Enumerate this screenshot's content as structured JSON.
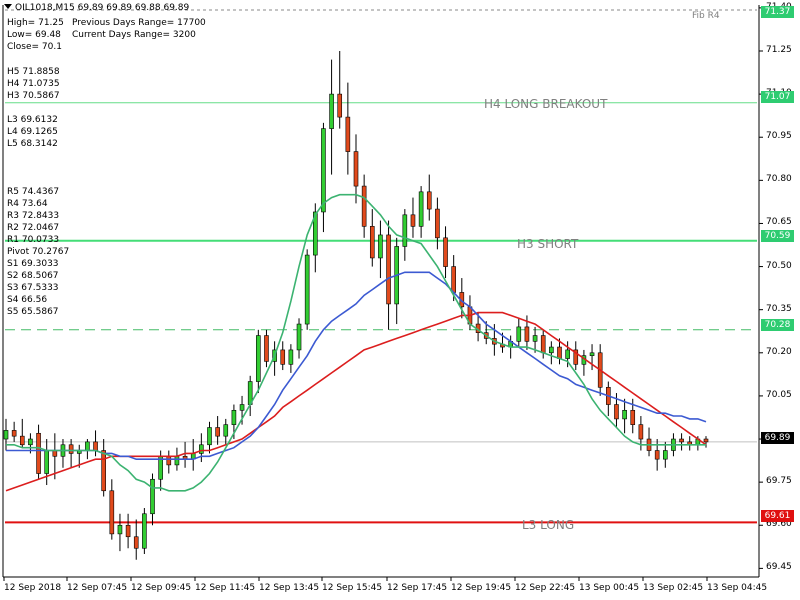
{
  "header": {
    "symbol_line": "OIL1018,M15  69.89 69.89 69.88 69.89",
    "high": "High= 71.25",
    "prev_range": "Previous Days Range= 17700",
    "low": "Low= 69.48",
    "curr_range": "Current Days Range= 3200",
    "close": "Close= 70.1"
  },
  "levels_upper": [
    "H5 71.8858",
    "H4 71.0735",
    "H3 70.5867"
  ],
  "levels_lower": [
    "L3 69.6132",
    "L4 69.1265",
    "L5 68.3142"
  ],
  "pivots": [
    "R5 74.4367",
    "R4 73.64",
    "R3 72.8433",
    "R2 72.0467",
    "R1 70.0733",
    "Pivot 70.2767",
    "S1 69.3033",
    "S2 68.5067",
    "S3 67.5333",
    "S4 66.56",
    "S5 65.5867"
  ],
  "fib_label": "Fib R4",
  "line_labels": {
    "h4": "H4 LONG BREAKOUT",
    "h3": "H3 SHORT",
    "l3": "L3 LONG"
  },
  "price_tags": {
    "top": "71.37",
    "h4": "71.07",
    "h3": "70.59",
    "pivot": "70.28",
    "last": "69.89",
    "l3": "69.61"
  },
  "colors": {
    "bull": "#32cd32",
    "bear": "#e14a1c",
    "ma_fast": "#3cb371",
    "ma_mid": "#3c5ad2",
    "ma_slow": "#dc1e1e",
    "hline": "#66dd88",
    "l3line": "#e01010",
    "price_tag_green": "#2ecc71",
    "price_tag_red": "#e01010",
    "last_tag": "#000000"
  },
  "chart_data": {
    "type": "candlestick",
    "y_ticks": [
      "71.40",
      "71.25",
      "71.10",
      "70.95",
      "70.80",
      "70.65",
      "70.50",
      "70.35",
      "70.20",
      "70.05",
      "69.90",
      "69.75",
      "69.60",
      "69.45"
    ],
    "x_ticks": [
      "12 Sep 2018",
      "12 Sep 07:45",
      "12 Sep 09:45",
      "12 Sep 11:45",
      "12 Sep 13:45",
      "12 Sep 15:45",
      "12 Sep 17:45",
      "12 Sep 19:45",
      "12 Sep 22:45",
      "13 Sep 00:45",
      "13 Sep 02:45",
      "13 Sep 04:45"
    ],
    "ylim": [
      69.42,
      71.41
    ],
    "hlines": {
      "h4": 71.07,
      "h3": 70.59,
      "pivot": 70.28,
      "current": 69.89,
      "l3": 69.61
    },
    "candles": [
      {
        "o": 69.9,
        "h": 69.97,
        "l": 69.86,
        "c": 69.93
      },
      {
        "o": 69.93,
        "h": 69.96,
        "l": 69.89,
        "c": 69.91
      },
      {
        "o": 69.91,
        "h": 69.97,
        "l": 69.87,
        "c": 69.88
      },
      {
        "o": 69.88,
        "h": 69.92,
        "l": 69.85,
        "c": 69.9
      },
      {
        "o": 69.92,
        "h": 69.95,
        "l": 69.76,
        "c": 69.78
      },
      {
        "o": 69.78,
        "h": 69.9,
        "l": 69.74,
        "c": 69.86
      },
      {
        "o": 69.86,
        "h": 69.92,
        "l": 69.76,
        "c": 69.84
      },
      {
        "o": 69.84,
        "h": 69.9,
        "l": 69.8,
        "c": 69.88
      },
      {
        "o": 69.88,
        "h": 69.9,
        "l": 69.8,
        "c": 69.85
      },
      {
        "o": 69.85,
        "h": 69.88,
        "l": 69.8,
        "c": 69.86
      },
      {
        "o": 69.86,
        "h": 69.9,
        "l": 69.83,
        "c": 69.89
      },
      {
        "o": 69.89,
        "h": 69.93,
        "l": 69.84,
        "c": 69.86
      },
      {
        "o": 69.86,
        "h": 69.9,
        "l": 69.7,
        "c": 69.72
      },
      {
        "o": 69.72,
        "h": 69.76,
        "l": 69.55,
        "c": 69.57
      },
      {
        "o": 69.57,
        "h": 69.64,
        "l": 69.51,
        "c": 69.6
      },
      {
        "o": 69.6,
        "h": 69.64,
        "l": 69.52,
        "c": 69.56
      },
      {
        "o": 69.56,
        "h": 69.62,
        "l": 69.48,
        "c": 69.52
      },
      {
        "o": 69.52,
        "h": 69.66,
        "l": 69.5,
        "c": 69.64
      },
      {
        "o": 69.64,
        "h": 69.78,
        "l": 69.6,
        "c": 69.76
      },
      {
        "o": 69.76,
        "h": 69.86,
        "l": 69.72,
        "c": 69.84
      },
      {
        "o": 69.84,
        "h": 69.86,
        "l": 69.78,
        "c": 69.81
      },
      {
        "o": 69.81,
        "h": 69.87,
        "l": 69.79,
        "c": 69.84
      },
      {
        "o": 69.84,
        "h": 69.89,
        "l": 69.8,
        "c": 69.83
      },
      {
        "o": 69.83,
        "h": 69.9,
        "l": 69.79,
        "c": 69.85
      },
      {
        "o": 69.85,
        "h": 69.92,
        "l": 69.82,
        "c": 69.88
      },
      {
        "o": 69.88,
        "h": 69.96,
        "l": 69.85,
        "c": 69.94
      },
      {
        "o": 69.94,
        "h": 69.98,
        "l": 69.88,
        "c": 69.91
      },
      {
        "o": 69.91,
        "h": 69.97,
        "l": 69.88,
        "c": 69.95
      },
      {
        "o": 69.95,
        "h": 70.02,
        "l": 69.9,
        "c": 70.0
      },
      {
        "o": 70.0,
        "h": 70.05,
        "l": 69.95,
        "c": 70.02
      },
      {
        "o": 70.02,
        "h": 70.12,
        "l": 69.98,
        "c": 70.1
      },
      {
        "o": 70.1,
        "h": 70.28,
        "l": 70.06,
        "c": 70.26
      },
      {
        "o": 70.26,
        "h": 70.28,
        "l": 70.15,
        "c": 70.17
      },
      {
        "o": 70.17,
        "h": 70.24,
        "l": 70.12,
        "c": 70.21
      },
      {
        "o": 70.21,
        "h": 70.24,
        "l": 70.14,
        "c": 70.16
      },
      {
        "o": 70.16,
        "h": 70.23,
        "l": 70.13,
        "c": 70.21
      },
      {
        "o": 70.21,
        "h": 70.32,
        "l": 70.18,
        "c": 70.3
      },
      {
        "o": 70.3,
        "h": 70.56,
        "l": 70.28,
        "c": 70.54
      },
      {
        "o": 70.54,
        "h": 70.72,
        "l": 70.48,
        "c": 70.69
      },
      {
        "o": 70.69,
        "h": 71.0,
        "l": 70.62,
        "c": 70.98
      },
      {
        "o": 70.98,
        "h": 71.22,
        "l": 70.82,
        "c": 71.1
      },
      {
        "o": 71.1,
        "h": 71.25,
        "l": 70.98,
        "c": 71.02
      },
      {
        "o": 71.02,
        "h": 71.14,
        "l": 70.82,
        "c": 70.9
      },
      {
        "o": 70.9,
        "h": 70.96,
        "l": 70.72,
        "c": 70.78
      },
      {
        "o": 70.78,
        "h": 70.82,
        "l": 70.6,
        "c": 70.64
      },
      {
        "o": 70.64,
        "h": 70.7,
        "l": 70.5,
        "c": 70.53
      },
      {
        "o": 70.53,
        "h": 70.66,
        "l": 70.46,
        "c": 70.61
      },
      {
        "o": 70.61,
        "h": 70.66,
        "l": 70.28,
        "c": 70.37
      },
      {
        "o": 70.37,
        "h": 70.6,
        "l": 70.3,
        "c": 70.57
      },
      {
        "o": 70.57,
        "h": 70.7,
        "l": 70.52,
        "c": 70.68
      },
      {
        "o": 70.68,
        "h": 70.74,
        "l": 70.6,
        "c": 70.64
      },
      {
        "o": 70.64,
        "h": 70.78,
        "l": 70.6,
        "c": 70.76
      },
      {
        "o": 70.76,
        "h": 70.82,
        "l": 70.66,
        "c": 70.7
      },
      {
        "o": 70.7,
        "h": 70.74,
        "l": 70.56,
        "c": 70.6
      },
      {
        "o": 70.6,
        "h": 70.64,
        "l": 70.46,
        "c": 70.5
      },
      {
        "o": 70.5,
        "h": 70.54,
        "l": 70.38,
        "c": 70.41
      },
      {
        "o": 70.41,
        "h": 70.46,
        "l": 70.32,
        "c": 70.36
      },
      {
        "o": 70.36,
        "h": 70.4,
        "l": 70.28,
        "c": 70.3
      },
      {
        "o": 70.3,
        "h": 70.34,
        "l": 70.24,
        "c": 70.27
      },
      {
        "o": 70.27,
        "h": 70.31,
        "l": 70.23,
        "c": 70.25
      },
      {
        "o": 70.25,
        "h": 70.3,
        "l": 70.19,
        "c": 70.23
      },
      {
        "o": 70.23,
        "h": 70.27,
        "l": 70.2,
        "c": 70.22
      },
      {
        "o": 70.22,
        "h": 70.26,
        "l": 70.18,
        "c": 70.24
      },
      {
        "o": 70.24,
        "h": 70.32,
        "l": 70.22,
        "c": 70.29
      },
      {
        "o": 70.29,
        "h": 70.33,
        "l": 70.21,
        "c": 70.24
      },
      {
        "o": 70.24,
        "h": 70.29,
        "l": 70.2,
        "c": 70.26
      },
      {
        "o": 70.26,
        "h": 70.28,
        "l": 70.18,
        "c": 70.2
      },
      {
        "o": 70.2,
        "h": 70.24,
        "l": 70.16,
        "c": 70.22
      },
      {
        "o": 70.22,
        "h": 70.25,
        "l": 70.16,
        "c": 70.18
      },
      {
        "o": 70.18,
        "h": 70.24,
        "l": 70.15,
        "c": 70.21
      },
      {
        "o": 70.21,
        "h": 70.24,
        "l": 70.14,
        "c": 70.16
      },
      {
        "o": 70.16,
        "h": 70.21,
        "l": 70.12,
        "c": 70.19
      },
      {
        "o": 70.19,
        "h": 70.23,
        "l": 70.14,
        "c": 70.2
      },
      {
        "o": 70.2,
        "h": 70.23,
        "l": 70.05,
        "c": 70.08
      },
      {
        "o": 70.08,
        "h": 70.1,
        "l": 69.98,
        "c": 70.02
      },
      {
        "o": 70.02,
        "h": 70.06,
        "l": 69.94,
        "c": 69.97
      },
      {
        "o": 69.97,
        "h": 70.04,
        "l": 69.92,
        "c": 70.0
      },
      {
        "o": 70.0,
        "h": 70.04,
        "l": 69.92,
        "c": 69.95
      },
      {
        "o": 69.95,
        "h": 69.98,
        "l": 69.86,
        "c": 69.9
      },
      {
        "o": 69.9,
        "h": 69.94,
        "l": 69.84,
        "c": 69.86
      },
      {
        "o": 69.86,
        "h": 69.9,
        "l": 69.79,
        "c": 69.83
      },
      {
        "o": 69.83,
        "h": 69.89,
        "l": 69.8,
        "c": 69.86
      },
      {
        "o": 69.86,
        "h": 69.92,
        "l": 69.84,
        "c": 69.9
      },
      {
        "o": 69.9,
        "h": 69.92,
        "l": 69.86,
        "c": 69.89
      },
      {
        "o": 69.89,
        "h": 69.91,
        "l": 69.86,
        "c": 69.88
      },
      {
        "o": 69.88,
        "h": 69.91,
        "l": 69.86,
        "c": 69.9
      },
      {
        "o": 69.9,
        "h": 69.91,
        "l": 69.87,
        "c": 69.89
      }
    ],
    "ma_fast": [
      69.88,
      69.88,
      69.87,
      69.87,
      69.87,
      69.86,
      69.86,
      69.86,
      69.86,
      69.86,
      69.86,
      69.86,
      69.85,
      69.84,
      69.81,
      69.79,
      69.76,
      69.75,
      69.73,
      69.73,
      69.72,
      69.72,
      69.72,
      69.73,
      69.75,
      69.78,
      69.82,
      69.87,
      69.92,
      69.97,
      70.02,
      70.07,
      70.13,
      70.19,
      70.27,
      70.38,
      70.5,
      70.61,
      70.68,
      70.72,
      70.74,
      70.75,
      70.75,
      70.75,
      70.74,
      70.71,
      70.68,
      70.64,
      70.61,
      70.6,
      70.59,
      70.58,
      70.54,
      70.5,
      70.45,
      70.4,
      70.35,
      70.3,
      70.28,
      70.26,
      70.24,
      70.23,
      70.22,
      70.22,
      70.22,
      70.21,
      70.2,
      70.19,
      70.18,
      70.17,
      70.13,
      70.09,
      70.04,
      70.0,
      69.97,
      69.94,
      69.91,
      69.89,
      69.88,
      69.88,
      69.88,
      69.88,
      69.88,
      69.88,
      69.88,
      69.88,
      69.88
    ],
    "ma_mid": [
      69.86,
      69.86,
      69.86,
      69.86,
      69.86,
      69.86,
      69.86,
      69.86,
      69.86,
      69.86,
      69.86,
      69.86,
      69.85,
      69.85,
      69.84,
      69.84,
      69.83,
      69.83,
      69.83,
      69.83,
      69.83,
      69.83,
      69.83,
      69.83,
      69.84,
      69.84,
      69.85,
      69.86,
      69.87,
      69.89,
      69.91,
      69.94,
      69.98,
      70.02,
      70.07,
      70.11,
      70.15,
      70.19,
      70.24,
      70.28,
      70.31,
      70.33,
      70.35,
      70.37,
      70.4,
      70.42,
      70.44,
      70.46,
      70.47,
      70.48,
      70.48,
      70.48,
      70.48,
      70.46,
      70.44,
      70.41,
      70.38,
      70.36,
      70.33,
      70.3,
      70.28,
      70.26,
      70.24,
      70.22,
      70.2,
      70.18,
      70.16,
      70.14,
      70.12,
      70.11,
      70.09,
      70.08,
      70.07,
      70.06,
      70.05,
      70.04,
      70.03,
      70.02,
      70.01,
      70.0,
      69.99,
      69.99,
      69.98,
      69.98,
      69.97,
      69.97,
      69.96
    ],
    "ma_slow": [
      69.72,
      69.73,
      69.74,
      69.75,
      69.76,
      69.77,
      69.78,
      69.79,
      69.8,
      69.81,
      69.82,
      69.83,
      69.83,
      69.84,
      69.84,
      69.84,
      69.84,
      69.84,
      69.84,
      69.84,
      69.84,
      69.84,
      69.85,
      69.85,
      69.86,
      69.86,
      69.87,
      69.88,
      69.89,
      69.9,
      69.92,
      69.94,
      69.96,
      69.98,
      70.01,
      70.03,
      70.05,
      70.07,
      70.09,
      70.11,
      70.13,
      70.15,
      70.17,
      70.19,
      70.21,
      70.22,
      70.23,
      70.24,
      70.25,
      70.26,
      70.27,
      70.28,
      70.29,
      70.3,
      70.31,
      70.32,
      70.33,
      70.33,
      70.34,
      70.34,
      70.34,
      70.34,
      70.33,
      70.32,
      70.31,
      70.3,
      70.28,
      70.26,
      70.24,
      70.22,
      70.2,
      70.18,
      70.16,
      70.14,
      70.12,
      70.1,
      70.08,
      70.06,
      70.04,
      70.02,
      70.0,
      69.98,
      69.96,
      69.94,
      69.92,
      69.9,
      69.88
    ]
  }
}
